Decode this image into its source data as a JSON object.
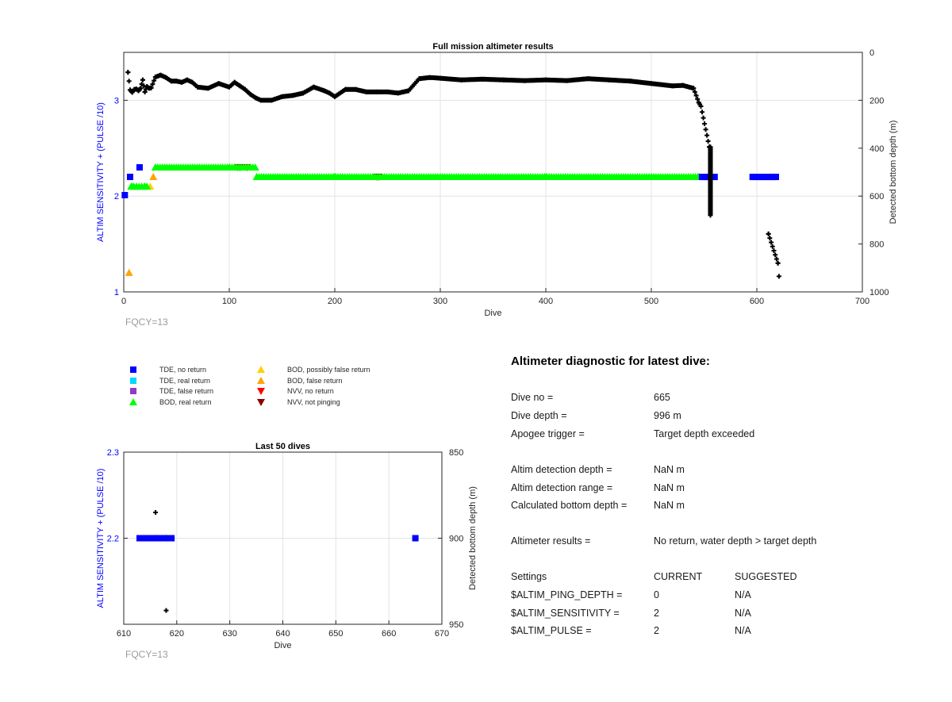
{
  "colors": {
    "tde_no_return": "#0000ff",
    "tde_real_return": "#00d8ff",
    "tde_false_return": "#8e3cc8",
    "bod_real_return": "#00ff00",
    "bod_possibly_false": "#ffd000",
    "bod_false_return": "#ffa500",
    "nvv_no_return": "#ff0000",
    "nvv_not_pinging": "#8b0000",
    "depth": "#000000",
    "left_axis": "#0000ff"
  },
  "chart_data": [
    {
      "type": "scatter",
      "title": "Full mission altimeter results",
      "xlabel": "Dive",
      "ylabel_left": "ALTIM SENSITIVITY + (PULSE /10)",
      "ylabel_right": "Detected bottom depth (m)",
      "xlim": [
        0,
        700
      ],
      "ylim_left": [
        1,
        3.5
      ],
      "ylim_right": [
        1000,
        0
      ],
      "x_ticks": [
        "0",
        "100",
        "200",
        "300",
        "400",
        "500",
        "600",
        "700"
      ],
      "y_left_ticks": [
        "1",
        "2",
        "3"
      ],
      "y_right_ticks": [
        "0",
        "200",
        "400",
        "600",
        "800",
        "1000"
      ],
      "grid": true,
      "annotation": "FQCY=13",
      "series": {
        "depth_points": [
          [
            4,
            83
          ],
          [
            6,
            157
          ],
          [
            8,
            167
          ],
          [
            10,
            155
          ],
          [
            12,
            153
          ],
          [
            14,
            160
          ],
          [
            16,
            150
          ],
          [
            18,
            115
          ],
          [
            20,
            165
          ],
          [
            22,
            143
          ],
          [
            24,
            150
          ],
          [
            26,
            148
          ],
          [
            30,
            103
          ],
          [
            35,
            95
          ],
          [
            40,
            105
          ],
          [
            45,
            120
          ],
          [
            50,
            120
          ],
          [
            55,
            125
          ],
          [
            60,
            115
          ],
          [
            65,
            125
          ],
          [
            70,
            145
          ],
          [
            80,
            150
          ],
          [
            90,
            130
          ],
          [
            100,
            145
          ],
          [
            105,
            125
          ],
          [
            110,
            140
          ],
          [
            115,
            155
          ],
          [
            120,
            175
          ],
          [
            125,
            190
          ],
          [
            130,
            200
          ],
          [
            140,
            200
          ],
          [
            150,
            185
          ],
          [
            160,
            180
          ],
          [
            170,
            170
          ],
          [
            180,
            145
          ],
          [
            190,
            160
          ],
          [
            195,
            170
          ],
          [
            200,
            185
          ],
          [
            210,
            155
          ],
          [
            220,
            155
          ],
          [
            230,
            165
          ],
          [
            240,
            165
          ],
          [
            250,
            165
          ],
          [
            260,
            170
          ],
          [
            270,
            160
          ],
          [
            280,
            110
          ],
          [
            290,
            105
          ],
          [
            300,
            108
          ],
          [
            320,
            115
          ],
          [
            340,
            112
          ],
          [
            360,
            115
          ],
          [
            380,
            118
          ],
          [
            400,
            115
          ],
          [
            420,
            118
          ],
          [
            440,
            110
          ],
          [
            460,
            115
          ],
          [
            480,
            120
          ],
          [
            500,
            130
          ],
          [
            520,
            140
          ],
          [
            530,
            138
          ],
          [
            540,
            150
          ],
          [
            545,
            210
          ],
          [
            547,
            225
          ],
          [
            555,
            395
          ],
          [
            556,
            445
          ],
          [
            556,
            680
          ],
          [
            611,
            758
          ],
          [
            620,
            880
          ],
          [
            621,
            935
          ]
        ],
        "tde_no_return": [
          [
            1,
            2.01
          ],
          [
            6,
            2.2
          ],
          [
            15,
            2.3
          ],
          [
            548,
            2.2
          ],
          [
            553,
            2.2
          ],
          [
            560,
            2.2
          ],
          [
            600,
            2.2
          ],
          [
            605,
            2.2
          ],
          [
            610,
            2.2
          ],
          [
            615,
            2.2
          ],
          [
            618,
            2.2
          ]
        ],
        "bod_real_return": [
          [
            8,
            2.1
          ],
          [
            12,
            2.1
          ],
          [
            20,
            2.1
          ],
          [
            30,
            2.3
          ],
          [
            100,
            2.3
          ],
          [
            120,
            2.3
          ],
          [
            126,
            2.2
          ],
          [
            200,
            2.2
          ],
          [
            300,
            2.2
          ],
          [
            400,
            2.2
          ],
          [
            500,
            2.2
          ],
          [
            545,
            2.2
          ]
        ],
        "bod_false_return": [
          [
            5,
            1.2
          ],
          [
            28,
            2.2
          ],
          [
            613,
            2.2
          ]
        ],
        "bod_possibly_false": [
          [
            25,
            2.1
          ],
          [
            616,
            2.2
          ]
        ],
        "nvv_no_return": [
          [
            108,
            2.3
          ],
          [
            117,
            2.3
          ],
          [
            240,
            2.2
          ]
        ],
        "nvv_not_pinging": [
          [
            110,
            2.3
          ],
          [
            242,
            2.2
          ]
        ]
      }
    },
    {
      "type": "scatter",
      "title": "Last 50 dives",
      "xlabel": "Dive",
      "ylabel_left": "ALTIM SENSITIVITY + (PULSE /10)",
      "ylabel_right": "Detected bottom depth (m)",
      "xlim": [
        610,
        670
      ],
      "ylim_left": [
        2.1,
        2.3
      ],
      "ylim_right": [
        950,
        850
      ],
      "x_ticks": [
        "610",
        "620",
        "630",
        "640",
        "650",
        "660",
        "670"
      ],
      "y_left_ticks": [
        "2.2",
        "2.3"
      ],
      "y_right_ticks": [
        "850",
        "900",
        "950"
      ],
      "grid": true,
      "annotation": "FQCY=13",
      "series": {
        "depth_points": [
          [
            616,
            885
          ],
          [
            618,
            942
          ]
        ],
        "tde_no_return": [
          [
            613,
            2.2
          ],
          [
            614,
            2.2
          ],
          [
            615,
            2.2
          ],
          [
            617,
            2.2
          ],
          [
            619,
            2.2
          ],
          [
            665,
            2.2
          ]
        ],
        "bod_possibly_false": [
          [
            616,
            2.2
          ]
        ],
        "bod_false_return": [
          [
            618,
            2.2
          ]
        ]
      }
    }
  ],
  "legend": {
    "tde_no_return": "TDE, no return",
    "tde_real_return": "TDE, real return",
    "tde_false_return": "TDE, false return",
    "bod_real_return": "BOD, real return",
    "bod_possibly_false": "BOD, possibly false return",
    "bod_false_return": "BOD, false return",
    "nvv_no_return": "NVV, no return",
    "nvv_not_pinging": "NVV, not pinging"
  },
  "diagnostic": {
    "title": "Altimeter diagnostic for latest dive:",
    "dive_no_label": "Dive no =",
    "dive_no": "665",
    "dive_depth_label": "Dive depth =",
    "dive_depth": "996 m",
    "apogee_label": "Apogee trigger =",
    "apogee": "Target depth exceeded",
    "det_depth_label": "Altim detection depth =",
    "det_depth": "NaN m",
    "det_range_label": "Altim detection range =",
    "det_range": "NaN m",
    "calc_depth_label": "Calculated bottom depth =",
    "calc_depth": "NaN m",
    "results_label": "Altimeter results =",
    "results": "No return, water depth > target depth",
    "settings_label": "Settings",
    "current_label": "CURRENT",
    "suggested_label": "SUGGESTED",
    "ping_depth_label": "$ALTIM_PING_DEPTH =",
    "ping_depth_current": "0",
    "ping_depth_suggested": "N/A",
    "sensitivity_label": "$ALTIM_SENSITIVITY =",
    "sensitivity_current": "2",
    "sensitivity_suggested": "N/A",
    "pulse_label": "$ALTIM_PULSE =",
    "pulse_current": "2",
    "pulse_suggested": "N/A"
  }
}
